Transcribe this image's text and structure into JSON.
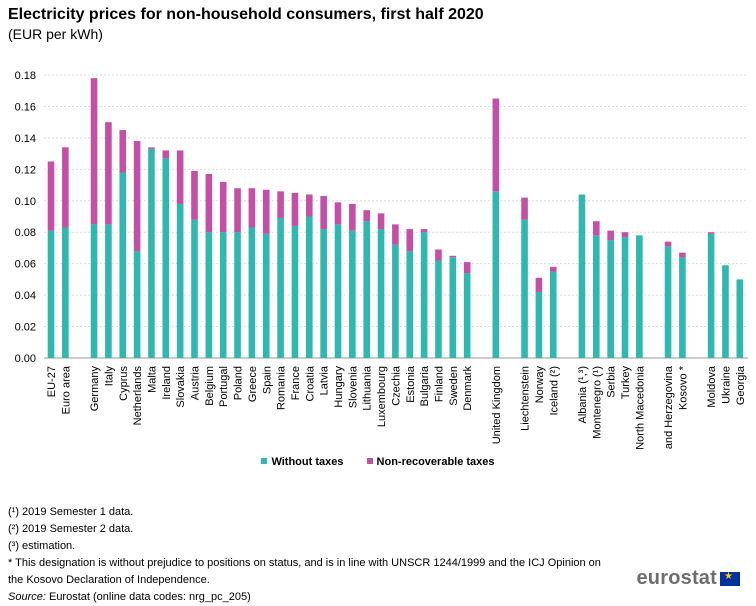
{
  "header": {
    "title": "Electricity prices for non-household consumers, first half 2020",
    "subtitle": "(EUR per kWh)"
  },
  "legend": {
    "without_taxes": "Without taxes",
    "non_recoverable": "Non-recoverable taxes"
  },
  "colors": {
    "without_taxes": "#2fb7b0",
    "non_recoverable": "#c44fa6",
    "grid": "#d9d9d9"
  },
  "notes": [
    "(¹) 2019 Semester 1 data.",
    "(²) 2019 Semester 2 data.",
    "(³) estimation.",
    "* This designation is without prejudice to positions on status, and is in line with UNSCR 1244/1999 and the ICJ Opinion on the Kosovo Declaration of Independence."
  ],
  "source": {
    "label": "Source:",
    "text": " Eurostat (online data codes: nrg_pc_205)"
  },
  "brand": {
    "name": "eurostat",
    "flag_icon": "★"
  },
  "chart_data": {
    "type": "bar",
    "stacked": true,
    "title": "Electricity prices for non-household consumers, first half 2020",
    "ylabel": "EUR per kWh",
    "ylim": [
      0,
      0.18
    ],
    "yticks": [
      0.0,
      0.02,
      0.04,
      0.06,
      0.08,
      0.1,
      0.12,
      0.14,
      0.16,
      0.18
    ],
    "grid": true,
    "legend_position": "bottom",
    "groups": [
      {
        "categories": [
          "EU-27",
          "Euro area"
        ]
      },
      {
        "categories": [
          "Germany",
          "Italy",
          "Cyprus",
          "Netherlands",
          "Malta",
          "Ireland",
          "Slovakia",
          "Austria",
          "Belgium",
          "Portugal",
          "Poland",
          "Greece",
          "Spain",
          "Romania",
          "France",
          "Croatia",
          "Latvia",
          "Hungary",
          "Slovenia",
          "Lithuania",
          "Luxembourg",
          "Czechia",
          "Estonia",
          "Bulgaria",
          "Finland",
          "Sweden",
          "Denmark"
        ]
      },
      {
        "categories": [
          "United Kingdom"
        ]
      },
      {
        "categories": [
          "Liechtenstein",
          "Norway",
          "Iceland (²)"
        ]
      },
      {
        "categories": [
          "Albania (¹,³)",
          "Montenegro (¹)",
          "Serbia",
          "Turkey",
          "North Macedonia"
        ]
      },
      {
        "categories": [
          "Bosnia and Herzegovina",
          "Kosovo *"
        ]
      },
      {
        "categories": [
          "Moldova",
          "Ukraine",
          "Georgia"
        ]
      }
    ],
    "categories": [
      "EU-27",
      "Euro area",
      "Germany",
      "Italy",
      "Cyprus",
      "Netherlands",
      "Malta",
      "Ireland",
      "Slovakia",
      "Austria",
      "Belgium",
      "Portugal",
      "Poland",
      "Greece",
      "Spain",
      "Romania",
      "France",
      "Croatia",
      "Latvia",
      "Hungary",
      "Slovenia",
      "Lithuania",
      "Luxembourg",
      "Czechia",
      "Estonia",
      "Bulgaria",
      "Finland",
      "Sweden",
      "Denmark",
      "United Kingdom",
      "Liechtenstein",
      "Norway",
      "Iceland (²)",
      "Albania (¹,³)",
      "Montenegro (¹)",
      "Serbia",
      "Turkey",
      "North Macedonia",
      "Bosnia and Herzegovina",
      "Kosovo *",
      "Moldova",
      "Ukraine",
      "Georgia"
    ],
    "series": [
      {
        "name": "Without taxes",
        "values": [
          0.081,
          0.083,
          0.085,
          0.085,
          0.118,
          0.068,
          0.133,
          0.127,
          0.098,
          0.088,
          0.08,
          0.08,
          0.08,
          0.083,
          0.079,
          0.089,
          0.084,
          0.09,
          0.082,
          0.085,
          0.081,
          0.087,
          0.082,
          0.072,
          0.068,
          0.08,
          0.062,
          0.064,
          0.054,
          0.106,
          0.088,
          0.042,
          0.055,
          0.104,
          0.078,
          0.075,
          0.077,
          0.078,
          0.071,
          0.064,
          0.079,
          0.059,
          0.05
        ]
      },
      {
        "name": "Non-recoverable taxes",
        "values": [
          0.044,
          0.051,
          0.093,
          0.065,
          0.027,
          0.07,
          0.001,
          0.005,
          0.034,
          0.031,
          0.037,
          0.032,
          0.028,
          0.025,
          0.028,
          0.017,
          0.021,
          0.014,
          0.021,
          0.014,
          0.017,
          0.007,
          0.01,
          0.013,
          0.014,
          0.002,
          0.007,
          0.001,
          0.007,
          0.059,
          0.014,
          0.009,
          0.003,
          0.0,
          0.009,
          0.006,
          0.003,
          0.0,
          0.003,
          0.003,
          0.001,
          0.0,
          0.0
        ]
      }
    ]
  }
}
